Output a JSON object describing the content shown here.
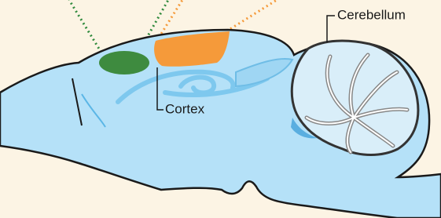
{
  "labels": {
    "cerebellum": "Cerebellum",
    "cortex": "Cortex"
  }
}
